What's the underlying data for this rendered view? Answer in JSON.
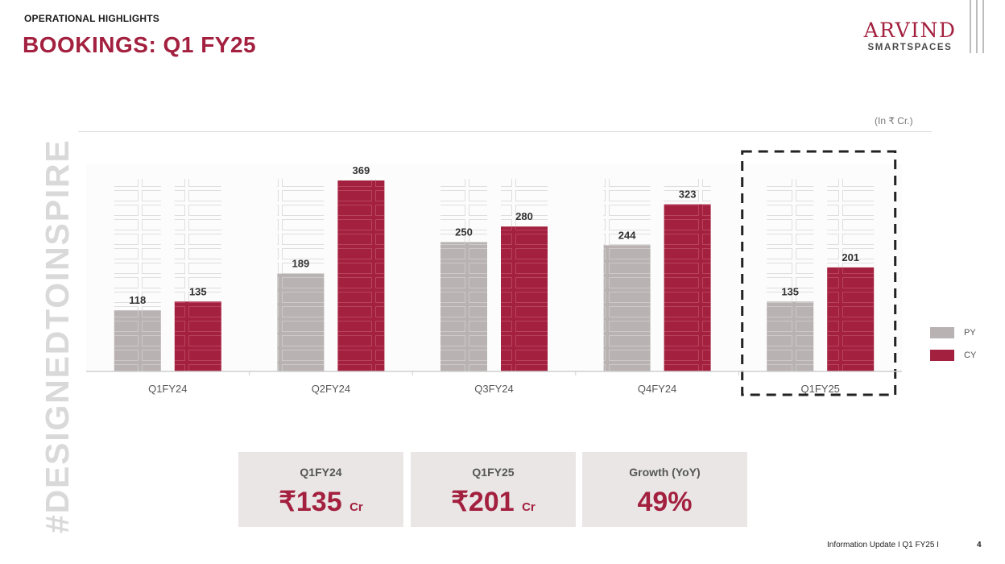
{
  "header": {
    "section_label": "OPERATIONAL HIGHLIGHTS",
    "title": "BOOKINGS: Q1 FY25"
  },
  "brand": {
    "logo_main": "ARVIND",
    "logo_sub": "SMARTSPACES",
    "color": "#a3203f"
  },
  "side_tag": "#DESIGNEDTOINSPIRE",
  "unit_note": "(In ₹ Cr.)",
  "chart_data": {
    "type": "bar",
    "categories": [
      "Q1FY24",
      "Q2FY24",
      "Q3FY24",
      "Q4FY24",
      "Q1FY25"
    ],
    "series": [
      {
        "name": "PY",
        "color": "#b8b2b2",
        "values": [
          118,
          189,
          250,
          244,
          135
        ]
      },
      {
        "name": "CY",
        "color": "#a3203f",
        "values": [
          135,
          369,
          280,
          323,
          201
        ]
      }
    ],
    "ylim": [
      0,
      400
    ],
    "data_labels": true,
    "legend_position": "right",
    "highlighted_category": "Q1FY25",
    "grid": false
  },
  "kpis": [
    {
      "label": "Q1FY24",
      "value": "₹135",
      "unit": "Cr"
    },
    {
      "label": "Q1FY25",
      "value": "₹201",
      "unit": "Cr"
    },
    {
      "label": "Growth (YoY)",
      "value": "49%",
      "unit": ""
    }
  ],
  "footer": {
    "text": "Information Update I Q1 FY25 I",
    "page": "4"
  }
}
